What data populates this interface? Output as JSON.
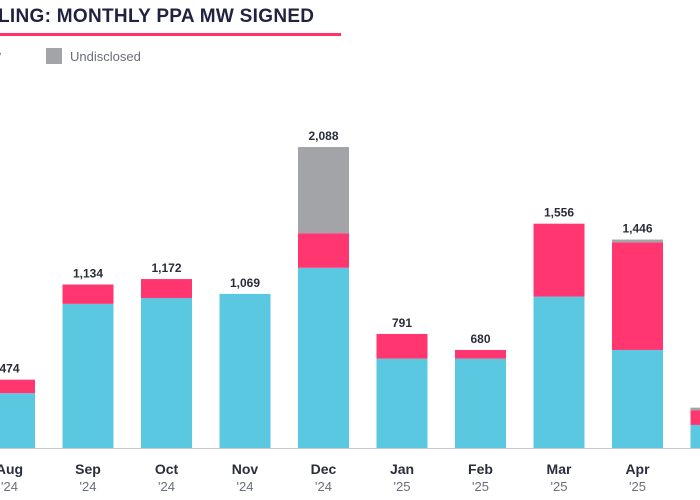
{
  "title": "LING: MONTHLY PPA MW SIGNED",
  "legend": [
    {
      "label": "ty",
      "color": "#5bc8e2"
    },
    {
      "label": "Undisclosed",
      "color": "#a3a4a8"
    }
  ],
  "colors": {
    "primary": "#5bc8e2",
    "secondary": "#ff3670",
    "undisclosed": "#a3a4a8",
    "title_underline": "#ff3366"
  },
  "chart_data": {
    "type": "bar",
    "stacked": true,
    "title": "LING: MONTHLY PPA MW SIGNED",
    "categories": [
      "Aug",
      "Sep",
      "Oct",
      "Nov",
      "Dec",
      "Jan",
      "Feb",
      "Mar",
      "Apr",
      ""
    ],
    "years": [
      "'24",
      "'24",
      "'24",
      "'24",
      "'24",
      "'25",
      "'25",
      "'25",
      "'25",
      ""
    ],
    "totals": [
      "474",
      "1,134",
      "1,172",
      "1,069",
      "2,088",
      "791",
      "680",
      "1,556",
      "1,446",
      ""
    ],
    "series": [
      {
        "name": "",
        "color": "#5bc8e2",
        "values": [
          380,
          1000,
          1040,
          1069,
          1250,
          620,
          620,
          1050,
          680,
          160
        ]
      },
      {
        "name": "",
        "color": "#ff3670",
        "values": [
          94,
          134,
          132,
          0,
          240,
          171,
          60,
          506,
          746,
          100
        ]
      },
      {
        "name": "Undisclosed",
        "color": "#a3a4a8",
        "values": [
          0,
          0,
          0,
          0,
          598,
          0,
          0,
          0,
          20,
          20
        ]
      }
    ],
    "ylim": [
      0,
      2088
    ],
    "grid": false,
    "legend_position": "top-left"
  }
}
